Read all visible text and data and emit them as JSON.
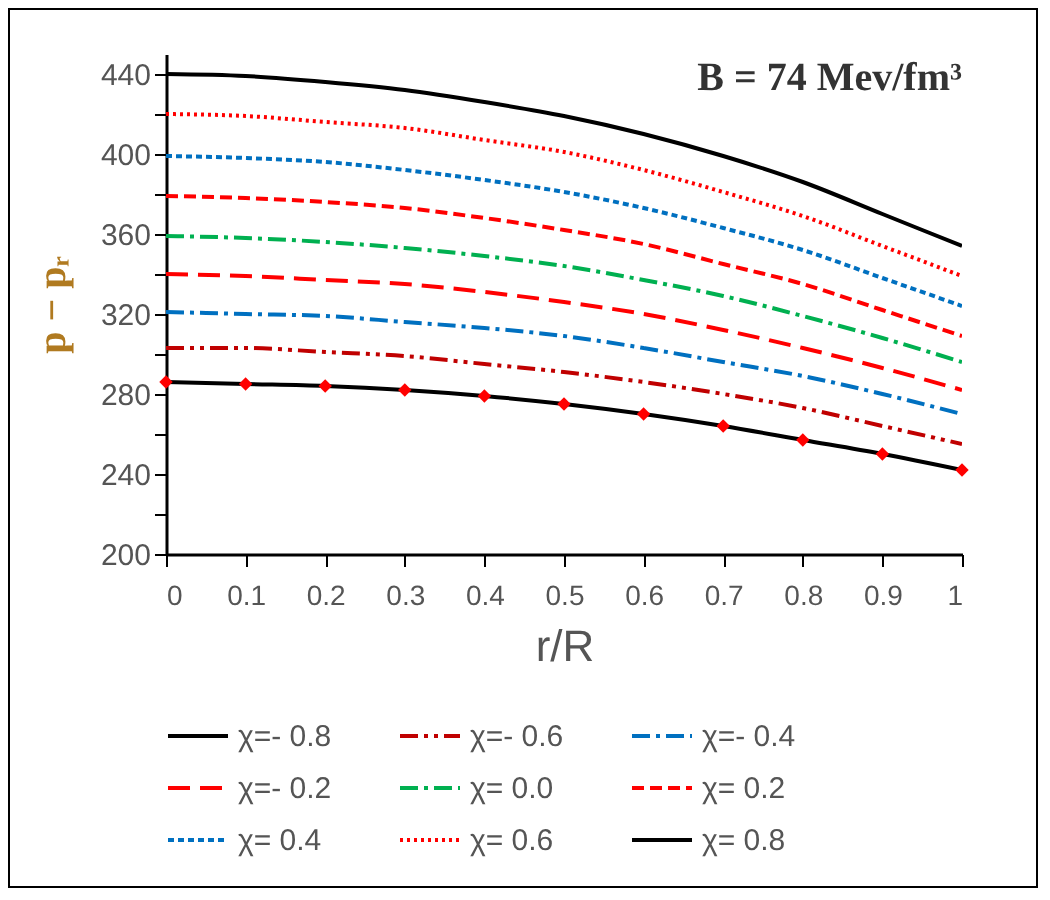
{
  "chart_data": {
    "type": "line",
    "xlabel": "r/R",
    "ylabel": "p − pᵣ",
    "annotations": [
      "B = 74  Mev/fm³"
    ],
    "x": [
      0,
      0.1,
      0.2,
      0.3,
      0.4,
      0.5,
      0.6,
      0.7,
      0.8,
      0.9,
      1
    ],
    "xlim": [
      0,
      1
    ],
    "xticks": [
      0,
      0.1,
      0.2,
      0.3,
      0.4,
      0.5,
      0.6,
      0.7,
      0.8,
      0.9,
      1
    ],
    "ylim": [
      200,
      450
    ],
    "yticks": [
      200,
      {
        "value": 220,
        "label": null
      },
      240,
      {
        "value": 260,
        "label": null
      },
      280,
      {
        "value": 300,
        "label": null
      },
      320,
      {
        "value": 340,
        "label": null
      },
      360,
      {
        "value": 380,
        "label": null
      },
      400,
      {
        "value": 420,
        "label": null
      },
      440
    ],
    "grid": false,
    "legend": "bottom",
    "series": [
      {
        "name": "χ=- 0.8",
        "color": "#000000",
        "line_style": "solid",
        "marker": "diamond",
        "colors": [
          "#ff0000",
          "#ff0000",
          "#ff0000",
          "#ff0000",
          "#ff0000",
          "#ff0000",
          "#ff0000",
          "#ff0000",
          "#ff0000",
          "#ff0000",
          "#ff0000"
        ],
        "values": [
          286,
          285,
          284,
          282,
          279,
          275,
          270,
          264,
          257,
          250,
          242
        ]
      },
      {
        "name": "χ=- 0.6",
        "color": "#c00000",
        "line_style": "dashdotdot",
        "values": [
          303,
          303,
          301,
          299,
          295,
          291,
          286,
          280,
          273,
          264,
          255
        ]
      },
      {
        "name": "χ=- 0.4",
        "color": "#0070c0",
        "line_style": "dashdot",
        "values": [
          321,
          320,
          319,
          316,
          313,
          309,
          303,
          296,
          289,
          280,
          270
        ]
      },
      {
        "name": "χ=- 0.2",
        "color": "#ff0000",
        "line_style": "longdash",
        "values": [
          340,
          339,
          337,
          335,
          331,
          326,
          320,
          312,
          303,
          293,
          282
        ]
      },
      {
        "name": "χ= 0.0",
        "color": "#00b050",
        "line_style": "dashdot",
        "values": [
          359,
          358,
          356,
          353,
          349,
          344,
          337,
          329,
          319,
          308,
          296
        ]
      },
      {
        "name": "χ= 0.2",
        "color": "#ff0000",
        "line_style": "dashed",
        "values": [
          379,
          378,
          376,
          373,
          368,
          362,
          355,
          345,
          335,
          322,
          309
        ]
      },
      {
        "name": "χ= 0.4",
        "color": "#0070c0",
        "line_style": "shortdash",
        "values": [
          399,
          398,
          396,
          392,
          387,
          381,
          373,
          363,
          352,
          338,
          324
        ]
      },
      {
        "name": "χ= 0.6",
        "color": "#ff0000",
        "line_style": "dotted",
        "values": [
          420,
          419,
          416,
          413,
          407,
          401,
          392,
          381,
          369,
          354,
          339
        ]
      },
      {
        "name": "χ= 0.8",
        "color": "#000000",
        "line_style": "solid",
        "values": [
          440,
          439,
          436,
          432,
          426,
          419,
          410,
          399,
          386,
          370,
          354
        ]
      }
    ]
  }
}
